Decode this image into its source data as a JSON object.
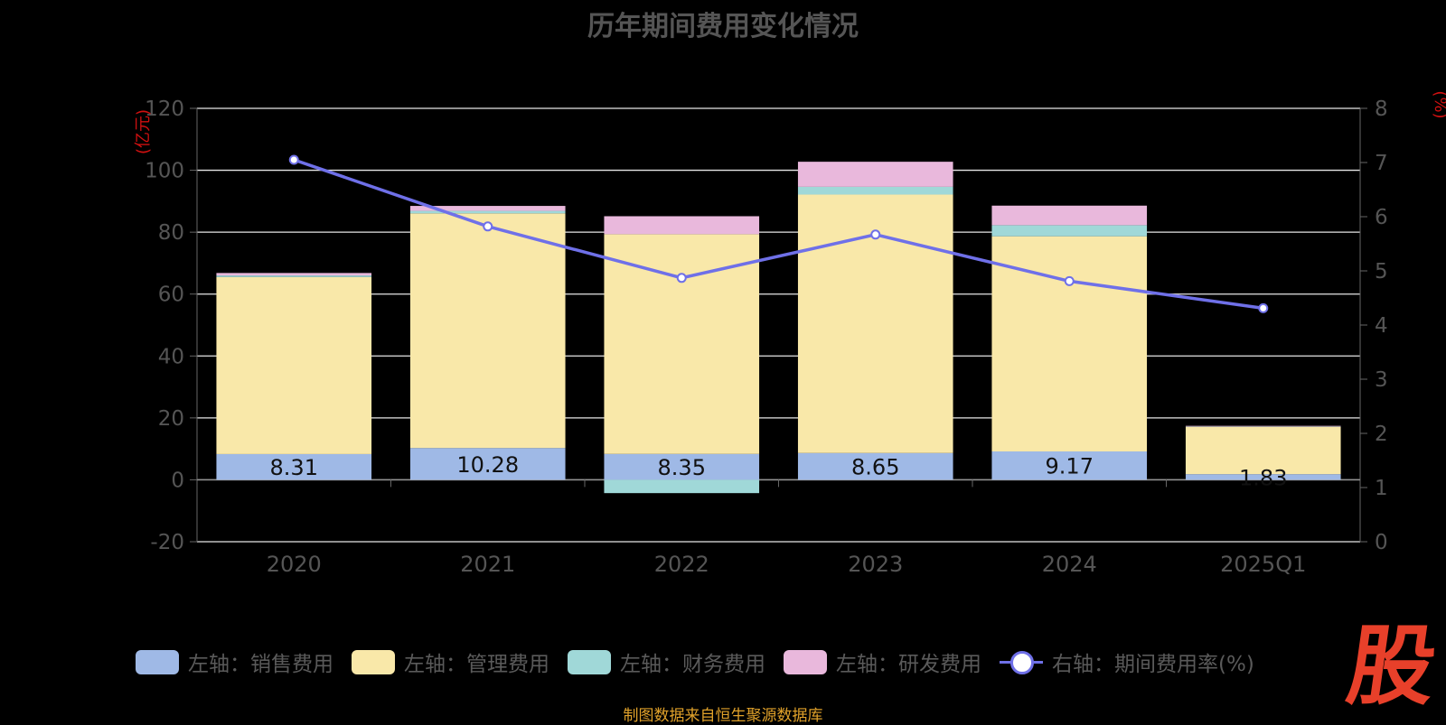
{
  "chart_data": {
    "type": "bar",
    "title": "历年期间费用变化情况",
    "categories": [
      "2020",
      "2021",
      "2022",
      "2023",
      "2024",
      "2025Q1"
    ],
    "left_axis_unit": "(亿元)",
    "right_axis_unit": "(%)",
    "left_ylim": [
      -20,
      120
    ],
    "left_ticks": [
      -20,
      0,
      20,
      40,
      60,
      80,
      100,
      120
    ],
    "right_ylim": [
      0,
      8
    ],
    "right_ticks": [
      0,
      1,
      2,
      3,
      4,
      5,
      6,
      7,
      8
    ],
    "stacked": true,
    "series": [
      {
        "name": "左轴：销售费用",
        "axis": "left",
        "type": "bar",
        "color": "#9fb9e6",
        "values": [
          8.31,
          10.28,
          8.35,
          8.65,
          9.17,
          1.83
        ]
      },
      {
        "name": "左轴：管理费用",
        "axis": "left",
        "type": "bar",
        "color": "#f9e8a9",
        "values": [
          57.2,
          75.8,
          71.0,
          83.5,
          69.5,
          15.3
        ]
      },
      {
        "name": "左轴：财务费用",
        "axis": "left",
        "type": "bar",
        "color": "#a0d8d8",
        "values": [
          0.5,
          0.8,
          -4.3,
          2.5,
          3.6,
          0.1
        ]
      },
      {
        "name": "左轴：研发费用",
        "axis": "left",
        "type": "bar",
        "color": "#e9b8dc",
        "values": [
          0.8,
          1.6,
          5.8,
          8.1,
          6.3,
          0.2
        ]
      },
      {
        "name": "右轴：期间费用率(%)",
        "axis": "right",
        "type": "line",
        "color": "#6f70e8",
        "values": [
          7.05,
          5.82,
          4.87,
          5.67,
          4.81,
          4.31
        ]
      }
    ],
    "data_labels": [
      "8.31",
      "10.28",
      "8.35",
      "8.65",
      "9.17",
      "1.83"
    ],
    "grid": true,
    "legend_position": "bottom"
  },
  "source_text": "制图数据来自恒生聚源数据库",
  "logo_text": "股"
}
